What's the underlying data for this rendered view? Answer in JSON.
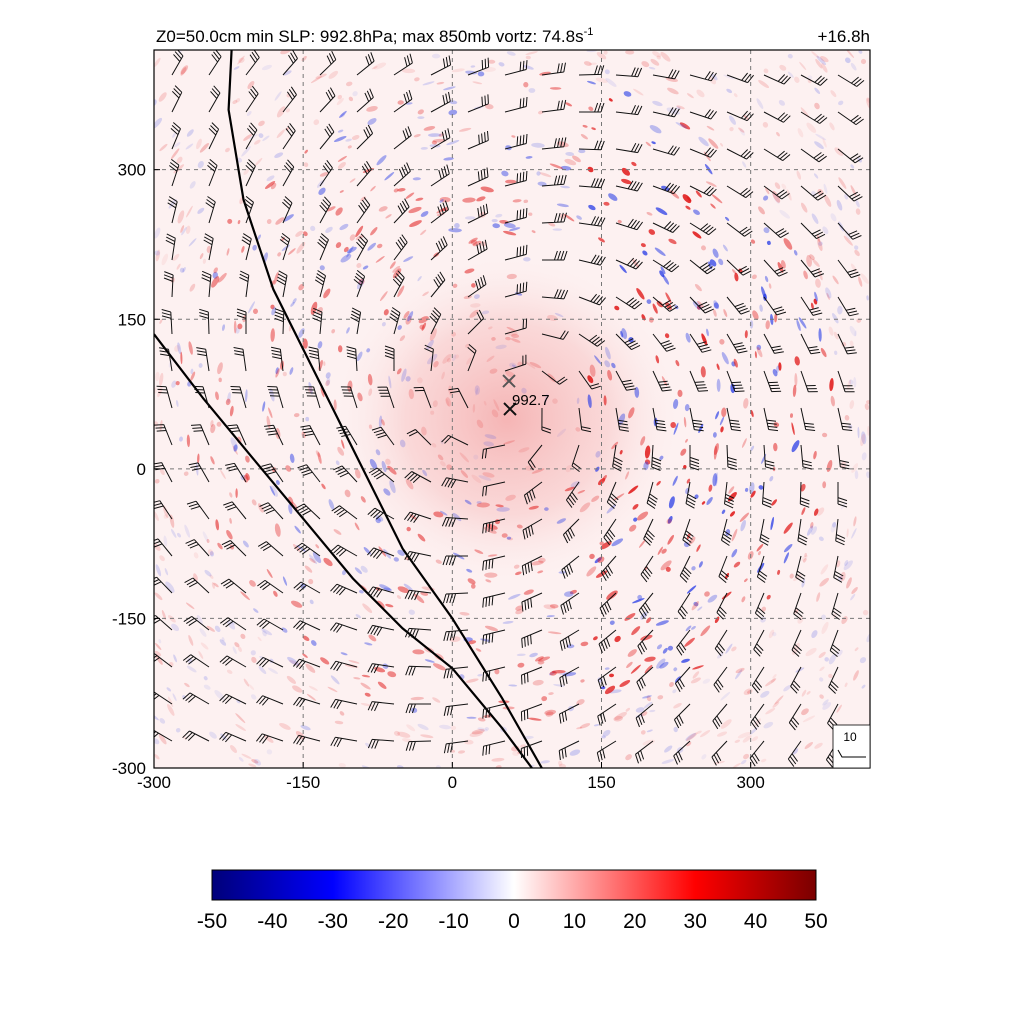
{
  "header": {
    "title_main": "Z0=50.0cm  min SLP: 992.8hPa; max 850mb vortz:  74.8s",
    "title_sup": "-1",
    "forecast_time": "+16.8h"
  },
  "chart_data": {
    "type": "heatmap",
    "title": "Z0=50.0cm  min SLP: 992.8hPa; max 850mb vortz:  74.8s-1",
    "xlim": [
      -300,
      420
    ],
    "ylim": [
      -300,
      420
    ],
    "x_ticks": [
      -300,
      -150,
      0,
      150,
      300
    ],
    "y_ticks": [
      -300,
      -150,
      0,
      150,
      300
    ],
    "x_tick_labels": [
      "-300",
      "-150",
      "0",
      "150",
      "300"
    ],
    "y_tick_labels": [
      "-300",
      "-150",
      "0",
      "150",
      "300"
    ],
    "grid": true,
    "grid_style": "dashed",
    "storm_centers": [
      {
        "x": 57,
        "y": 88,
        "label": ""
      },
      {
        "x": 58,
        "y": 60,
        "label": "992.7"
      }
    ],
    "coastlines": [
      {
        "points": [
          [
            -222,
            420
          ],
          [
            -225,
            360
          ],
          [
            -210,
            270
          ],
          [
            -180,
            180
          ],
          [
            -150,
            120
          ],
          [
            -120,
            60
          ],
          [
            -90,
            0
          ],
          [
            -50,
            -80
          ],
          [
            0,
            -150
          ],
          [
            50,
            -230
          ],
          [
            90,
            -300
          ]
        ]
      },
      {
        "points": [
          [
            -300,
            135
          ],
          [
            -250,
            70
          ],
          [
            -200,
            10
          ],
          [
            -150,
            -50
          ],
          [
            -100,
            -110
          ],
          [
            -50,
            -160
          ],
          [
            0,
            -200
          ],
          [
            50,
            -260
          ],
          [
            80,
            -300
          ]
        ]
      }
    ],
    "wind_barb_reference": {
      "label": "10",
      "speed": 10
    },
    "wind_barb_spacing": 37,
    "vortex_center": [
      55,
      70
    ],
    "colorbar": {
      "min": -50,
      "max": 50,
      "ticks": [
        -50,
        -40,
        -30,
        -20,
        -10,
        0,
        10,
        20,
        30,
        40,
        50
      ],
      "tick_labels": [
        "-50",
        "-40",
        "-30",
        "-20",
        "-10",
        "0",
        "10",
        "20",
        "30",
        "40",
        "50"
      ],
      "colors": [
        "#00007a",
        "#0000ff",
        "#ffffff",
        "#ff0000",
        "#7a0000"
      ]
    }
  }
}
